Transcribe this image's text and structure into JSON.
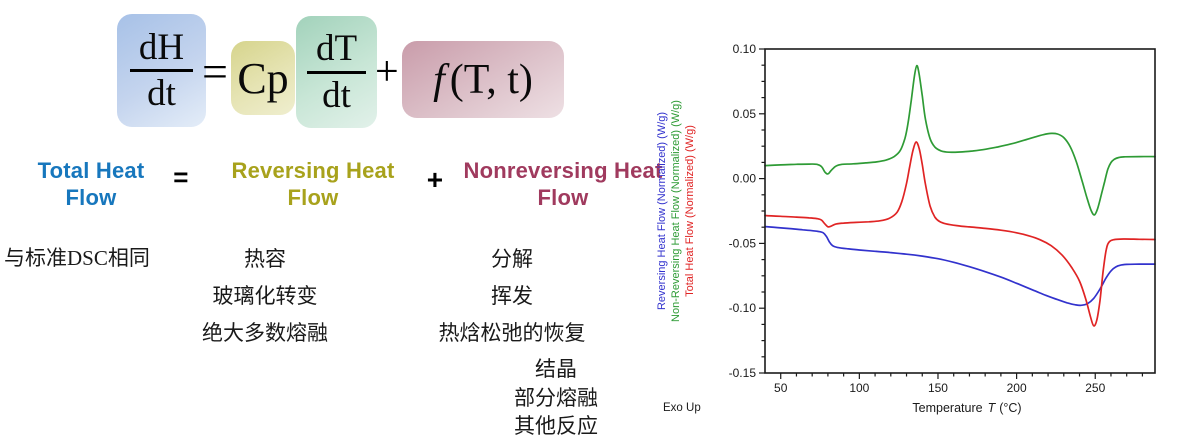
{
  "formula": {
    "term1_num": "dH",
    "term1_den": "dt",
    "equals": "=",
    "cp": "Cp",
    "term3_num": "dT",
    "term3_den": "dt",
    "plus": "+",
    "f_symbol": "f",
    "f_args": "(T, t)"
  },
  "headings": {
    "total": "Total Heat Flow",
    "equals": "=",
    "reversing": "Reversing Heat Flow",
    "plus": "+",
    "nonreversing": "Nonreversing Heat Flow"
  },
  "columns": {
    "total_items": [
      "与标准DSC相同"
    ],
    "reversing_items": [
      "热容",
      "玻璃化转变",
      "绝大多数熔融"
    ],
    "nonreversing_items": [
      "分解",
      "挥发",
      "热焓松弛的恢复"
    ],
    "nonreversing_items_group2": [
      "结晶",
      "部分熔融",
      "其他反应"
    ]
  },
  "colors": {
    "total_heading": "#1777bd",
    "reversing_heading": "#a8a21c",
    "nonreversing_heading": "#a03a5e"
  },
  "chart_data": {
    "type": "line",
    "title": "",
    "xlabel_prefix": "Temperature",
    "xlabel_symbol": "T",
    "xlabel_suffix": "(°C)",
    "xlabel_full": "Temperature T (°C)",
    "ylabel": "stacked rotated labels (one per series)",
    "exo_note": "Exo Up",
    "xlim": [
      40,
      288
    ],
    "ylim": [
      -0.15,
      0.1
    ],
    "x_ticks": [
      50,
      100,
      150,
      200,
      250
    ],
    "y_ticks": [
      0.1,
      0.05,
      0.0,
      -0.05,
      -0.1,
      -0.15
    ],
    "x_minor_step": 10,
    "y_minor_step": 0.0125,
    "grid": false,
    "legend_position": "rotated colored y-axis labels at left",
    "series": [
      {
        "name": "Reversing Heat Flow (Normalized)  (W/g)",
        "color": "#3232cd",
        "points": [
          [
            40,
            -0.037
          ],
          [
            48,
            -0.0378
          ],
          [
            56,
            -0.0386
          ],
          [
            64,
            -0.0395
          ],
          [
            70,
            -0.0402
          ],
          [
            74,
            -0.0408
          ],
          [
            77,
            -0.0418
          ],
          [
            79,
            -0.0445
          ],
          [
            81,
            -0.049
          ],
          [
            83,
            -0.0518
          ],
          [
            86,
            -0.0531
          ],
          [
            92,
            -0.0541
          ],
          [
            100,
            -0.0551
          ],
          [
            110,
            -0.0561
          ],
          [
            120,
            -0.0571
          ],
          [
            130,
            -0.0583
          ],
          [
            140,
            -0.0598
          ],
          [
            150,
            -0.0618
          ],
          [
            160,
            -0.0646
          ],
          [
            170,
            -0.068
          ],
          [
            180,
            -0.0718
          ],
          [
            190,
            -0.076
          ],
          [
            200,
            -0.0808
          ],
          [
            210,
            -0.0858
          ],
          [
            218,
            -0.0898
          ],
          [
            226,
            -0.0934
          ],
          [
            232,
            -0.0958
          ],
          [
            237,
            -0.0973
          ],
          [
            241,
            -0.0978
          ],
          [
            245,
            -0.0965
          ],
          [
            249,
            -0.0924
          ],
          [
            253,
            -0.0852
          ],
          [
            257,
            -0.0764
          ],
          [
            260,
            -0.0712
          ],
          [
            263,
            -0.0682
          ],
          [
            266,
            -0.0668
          ],
          [
            270,
            -0.0662
          ],
          [
            278,
            -0.066
          ],
          [
            288,
            -0.066
          ]
        ]
      },
      {
        "name": "Non-Reversing Heat Flow (Normalized)  (W/g)",
        "color": "#2e9b35",
        "points": [
          [
            40,
            0.01
          ],
          [
            50,
            0.0106
          ],
          [
            60,
            0.011
          ],
          [
            68,
            0.0112
          ],
          [
            73,
            0.011
          ],
          [
            76,
            0.0092
          ],
          [
            78,
            0.0052
          ],
          [
            80,
            0.0036
          ],
          [
            82,
            0.0062
          ],
          [
            85,
            0.0096
          ],
          [
            89,
            0.011
          ],
          [
            96,
            0.0114
          ],
          [
            104,
            0.0121
          ],
          [
            111,
            0.0129
          ],
          [
            117,
            0.0143
          ],
          [
            122,
            0.0169
          ],
          [
            126,
            0.0216
          ],
          [
            129,
            0.0312
          ],
          [
            131,
            0.0432
          ],
          [
            133,
            0.0605
          ],
          [
            135,
            0.079
          ],
          [
            136.5,
            0.0872
          ],
          [
            138,
            0.0808
          ],
          [
            140,
            0.0638
          ],
          [
            142,
            0.046
          ],
          [
            145,
            0.0308
          ],
          [
            148,
            0.0244
          ],
          [
            152,
            0.0214
          ],
          [
            157,
            0.0204
          ],
          [
            164,
            0.0205
          ],
          [
            172,
            0.0213
          ],
          [
            180,
            0.0226
          ],
          [
            188,
            0.0244
          ],
          [
            196,
            0.0266
          ],
          [
            204,
            0.0293
          ],
          [
            211,
            0.0319
          ],
          [
            217,
            0.0339
          ],
          [
            222,
            0.0349
          ],
          [
            226,
            0.0344
          ],
          [
            230,
            0.0316
          ],
          [
            234,
            0.0248
          ],
          [
            238,
            0.0128
          ],
          [
            242,
            -0.0034
          ],
          [
            245,
            -0.016
          ],
          [
            247.5,
            -0.0249
          ],
          [
            249.5,
            -0.028
          ],
          [
            251.5,
            -0.0232
          ],
          [
            254,
            -0.0118
          ],
          [
            256,
            -0.0022
          ],
          [
            258,
            0.0072
          ],
          [
            260,
            0.0124
          ],
          [
            262,
            0.0148
          ],
          [
            265,
            0.0163
          ],
          [
            269,
            0.0168
          ],
          [
            278,
            0.017
          ],
          [
            288,
            0.017
          ]
        ]
      },
      {
        "name": "Total Heat Flow (Normalized)  (W/g)",
        "color": "#e02424",
        "points": [
          [
            40,
            -0.0285
          ],
          [
            50,
            -0.0291
          ],
          [
            60,
            -0.0297
          ],
          [
            68,
            -0.0303
          ],
          [
            73,
            -0.0309
          ],
          [
            76,
            -0.0321
          ],
          [
            78,
            -0.0349
          ],
          [
            80,
            -0.0372
          ],
          [
            82,
            -0.0367
          ],
          [
            85,
            -0.0351
          ],
          [
            90,
            -0.0343
          ],
          [
            98,
            -0.0338
          ],
          [
            106,
            -0.0333
          ],
          [
            113,
            -0.0326
          ],
          [
            119,
            -0.0307
          ],
          [
            124,
            -0.0259
          ],
          [
            127,
            -0.0178
          ],
          [
            130,
            -0.0038
          ],
          [
            132,
            0.0092
          ],
          [
            134,
            0.0212
          ],
          [
            136,
            0.0282
          ],
          [
            138,
            0.0234
          ],
          [
            140,
            0.0108
          ],
          [
            142,
            -0.0042
          ],
          [
            145,
            -0.0212
          ],
          [
            148,
            -0.0296
          ],
          [
            151,
            -0.0331
          ],
          [
            155,
            -0.0349
          ],
          [
            162,
            -0.0363
          ],
          [
            170,
            -0.0373
          ],
          [
            180,
            -0.0384
          ],
          [
            190,
            -0.0398
          ],
          [
            200,
            -0.0418
          ],
          [
            208,
            -0.0442
          ],
          [
            215,
            -0.0472
          ],
          [
            222,
            -0.0518
          ],
          [
            229,
            -0.0591
          ],
          [
            235,
            -0.0686
          ],
          [
            240,
            -0.0791
          ],
          [
            244,
            -0.0931
          ],
          [
            247,
            -0.1066
          ],
          [
            249,
            -0.1136
          ],
          [
            251,
            -0.1092
          ],
          [
            253,
            -0.0941
          ],
          [
            255,
            -0.0716
          ],
          [
            257,
            -0.0546
          ],
          [
            259,
            -0.0487
          ],
          [
            262,
            -0.0471
          ],
          [
            268,
            -0.0466
          ],
          [
            278,
            -0.0468
          ],
          [
            288,
            -0.047
          ]
        ]
      }
    ]
  }
}
